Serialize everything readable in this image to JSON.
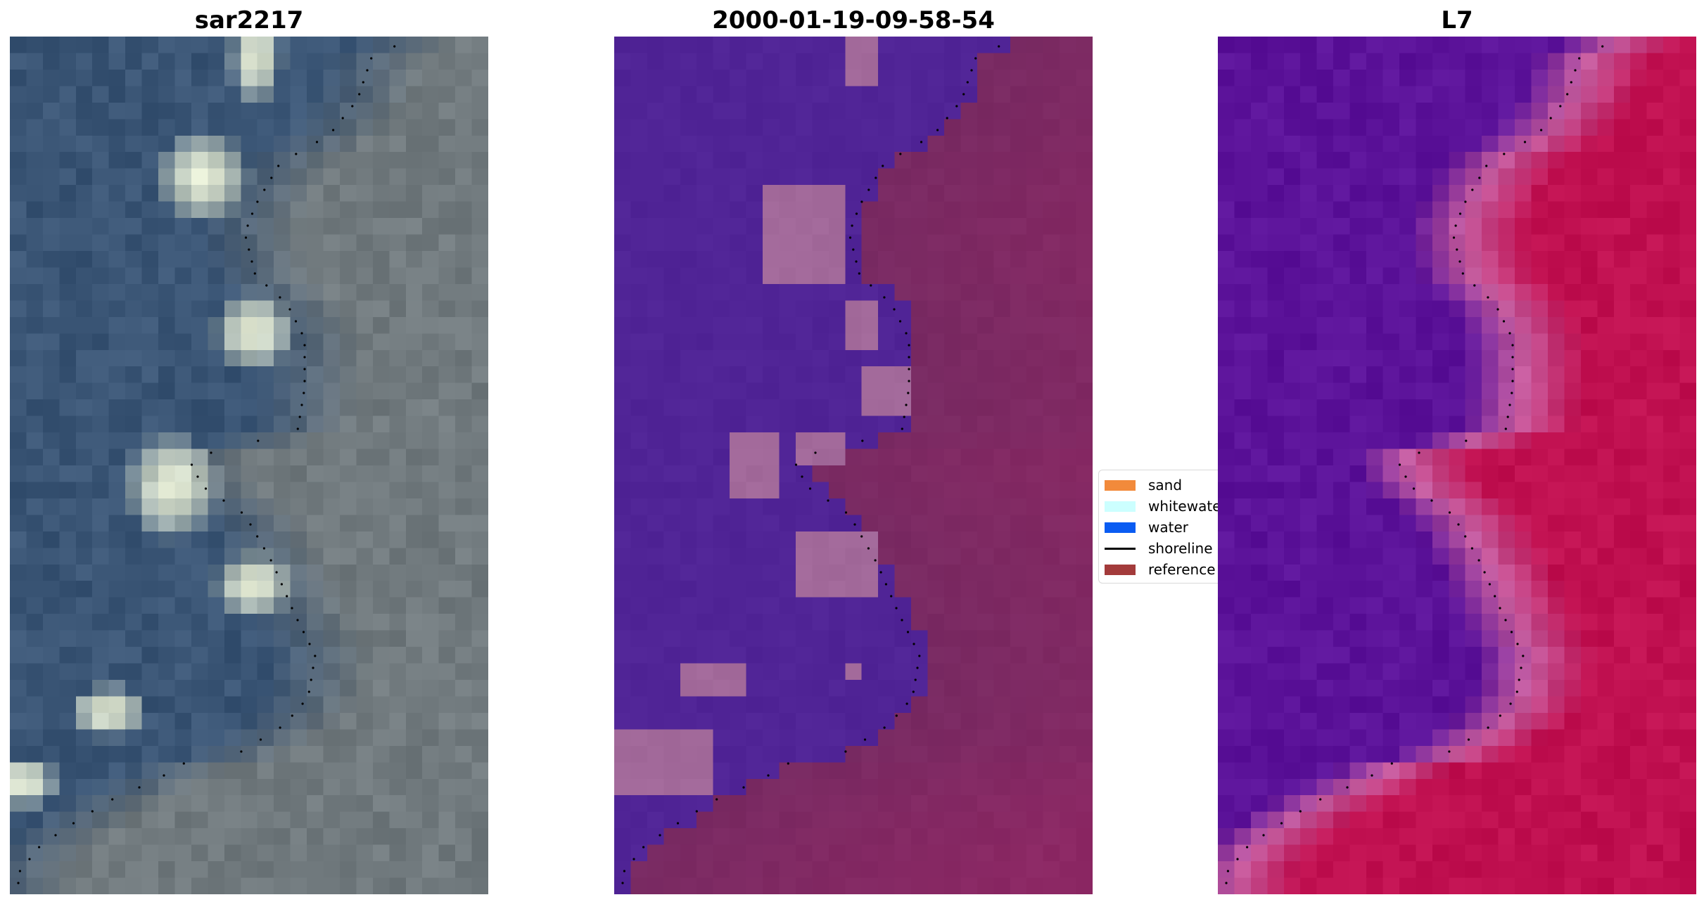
{
  "panels": [
    {
      "title": "sar2217"
    },
    {
      "title": "2000-01-19-09-58-54"
    },
    {
      "title": "L7"
    }
  ],
  "legend": {
    "items": [
      {
        "label": "sand",
        "color": "#f28a3b"
      },
      {
        "label": "whitewater",
        "color": "#ccffff"
      },
      {
        "label": "water",
        "color": "#0a5cf2"
      },
      {
        "label": "shoreline",
        "color": "#000000"
      },
      {
        "label": "reference",
        "color": "#a33b3b"
      }
    ]
  },
  "colors": {
    "rgb_water": "#3a5575",
    "rgb_land": "#717a7e",
    "rgb_whitewater": "#e3ead3",
    "class_water": "#502496",
    "class_land": "#782a62",
    "class_sand": "#a2699a",
    "index_water": "#5b1299",
    "index_land": "#c01050",
    "index_transition": "#c55da0"
  }
}
